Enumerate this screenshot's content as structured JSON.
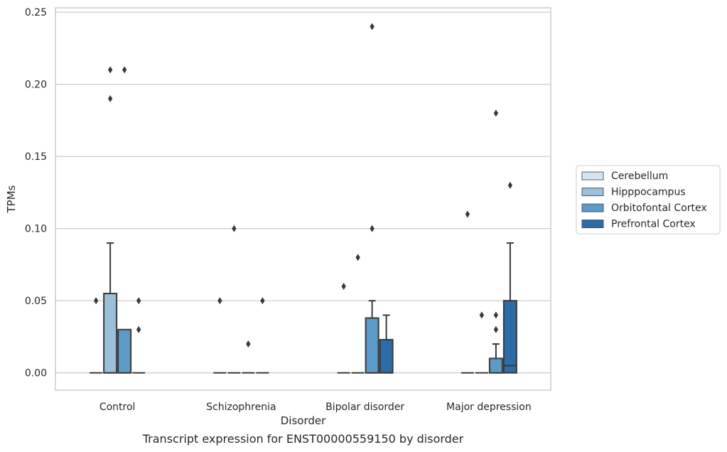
{
  "caption": "Transcript expression for ENST00000559150 by disorder",
  "chart_data": {
    "type": "box",
    "xlabel": "Disorder",
    "ylabel": "TPMs",
    "categories": [
      "Control",
      "Schizophrenia",
      "Bipolar disorder",
      "Major depression"
    ],
    "ylim": [
      -0.012,
      0.253
    ],
    "yticks": [
      0.0,
      0.05,
      0.1,
      0.15,
      0.2,
      0.25
    ],
    "ytick_labels": [
      "0.00",
      "0.05",
      "0.10",
      "0.15",
      "0.20",
      "0.25"
    ],
    "grid": "horizontal",
    "legend_position": "right",
    "series": [
      {
        "name": "Cerebellum",
        "color": "#d3e4f3",
        "boxes": [
          {
            "q1": 0,
            "median": 0,
            "q3": 0,
            "whisker_low": 0,
            "whisker_high": 0,
            "outliers": [
              0.05
            ]
          },
          {
            "q1": 0,
            "median": 0,
            "q3": 0,
            "whisker_low": 0,
            "whisker_high": 0,
            "outliers": [
              0.05
            ]
          },
          {
            "q1": 0,
            "median": 0,
            "q3": 0,
            "whisker_low": 0,
            "whisker_high": 0,
            "outliers": [
              0.06
            ]
          },
          {
            "q1": 0,
            "median": 0,
            "q3": 0,
            "whisker_low": 0,
            "whisker_high": 0,
            "outliers": [
              0.11
            ]
          }
        ]
      },
      {
        "name": "Hipppocampus",
        "color": "#9ac0db",
        "boxes": [
          {
            "q1": 0,
            "median": 0,
            "q3": 0.055,
            "whisker_low": 0,
            "whisker_high": 0.09,
            "outliers": [
              0.19,
              0.21
            ]
          },
          {
            "q1": 0,
            "median": 0,
            "q3": 0,
            "whisker_low": 0,
            "whisker_high": 0,
            "outliers": [
              0.1
            ]
          },
          {
            "q1": 0,
            "median": 0,
            "q3": 0,
            "whisker_low": 0,
            "whisker_high": 0,
            "outliers": [
              0.08
            ]
          },
          {
            "q1": 0,
            "median": 0,
            "q3": 0,
            "whisker_low": 0,
            "whisker_high": 0,
            "outliers": [
              0.04
            ]
          }
        ]
      },
      {
        "name": "Orbitofontal Cortex",
        "color": "#5a9bc9",
        "boxes": [
          {
            "q1": 0,
            "median": 0,
            "q3": 0.03,
            "whisker_low": 0,
            "whisker_high": 0.03,
            "outliers": [
              0.21
            ]
          },
          {
            "q1": 0,
            "median": 0,
            "q3": 0,
            "whisker_low": 0,
            "whisker_high": 0,
            "outliers": [
              0.02
            ]
          },
          {
            "q1": 0,
            "median": 0,
            "q3": 0.038,
            "whisker_low": 0,
            "whisker_high": 0.05,
            "outliers": [
              0.1,
              0.24
            ]
          },
          {
            "q1": 0,
            "median": 0,
            "q3": 0.01,
            "whisker_low": 0,
            "whisker_high": 0.02,
            "outliers": [
              0.03,
              0.04,
              0.18
            ]
          }
        ]
      },
      {
        "name": "Prefrontal Cortex",
        "color": "#2b6ca9",
        "boxes": [
          {
            "q1": 0,
            "median": 0,
            "q3": 0,
            "whisker_low": 0,
            "whisker_high": 0,
            "outliers": [
              0.03,
              0.05
            ]
          },
          {
            "q1": 0,
            "median": 0,
            "q3": 0,
            "whisker_low": 0,
            "whisker_high": 0,
            "outliers": [
              0.05
            ]
          },
          {
            "q1": 0,
            "median": 0,
            "q3": 0.023,
            "whisker_low": 0,
            "whisker_high": 0.04,
            "outliers": []
          },
          {
            "q1": 0,
            "median": 0.005,
            "q3": 0.05,
            "whisker_low": 0,
            "whisker_high": 0.09,
            "outliers": [
              0.13
            ]
          }
        ]
      }
    ]
  }
}
